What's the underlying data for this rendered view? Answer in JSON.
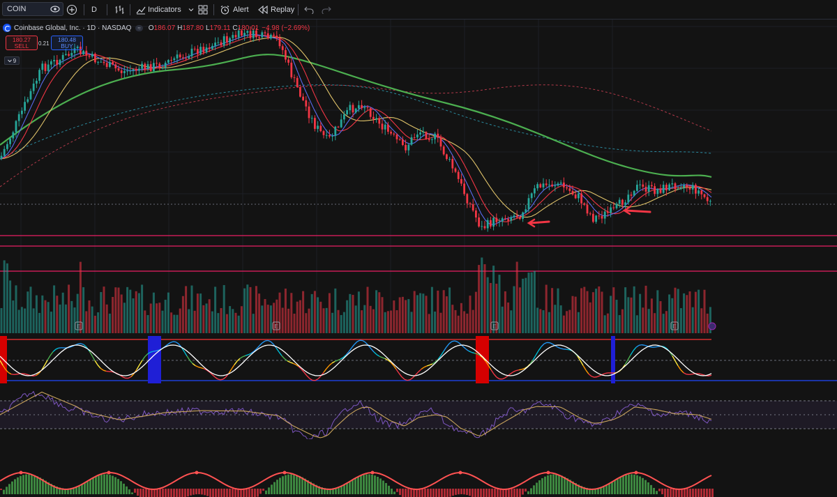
{
  "toolbar": {
    "symbol": "COIN",
    "interval": "D",
    "indicators_label": "Indicators",
    "alert_label": "Alert",
    "replay_label": "Replay"
  },
  "legend": {
    "title": "Coinbase Global, Inc. · 1D · NASDAQ",
    "open_key": "O",
    "open": "186.07",
    "high_key": "H",
    "high": "187.80",
    "low_key": "L",
    "low": "179.11",
    "close_key": "C",
    "close": "180.01",
    "change": "−4.98 (−2.69%)"
  },
  "trade": {
    "sell_price": "180.27",
    "sell_label": "SELL",
    "buy_price": "180.48",
    "buy_label": "BUY",
    "spread": "0.21",
    "indicator_count": "9"
  },
  "earnings_marker": "E",
  "colors": {
    "up": "#26a69a",
    "down": "#f23645",
    "background": "#131313",
    "ema_fast": "#5b6cf0",
    "ema_mid": "#f23645",
    "ema_slow": "#e0c36a",
    "ma_green": "#4caf50",
    "ma_dash_red": "#b33a4a",
    "ma_dash_teal": "#2b8a9e"
  }
}
